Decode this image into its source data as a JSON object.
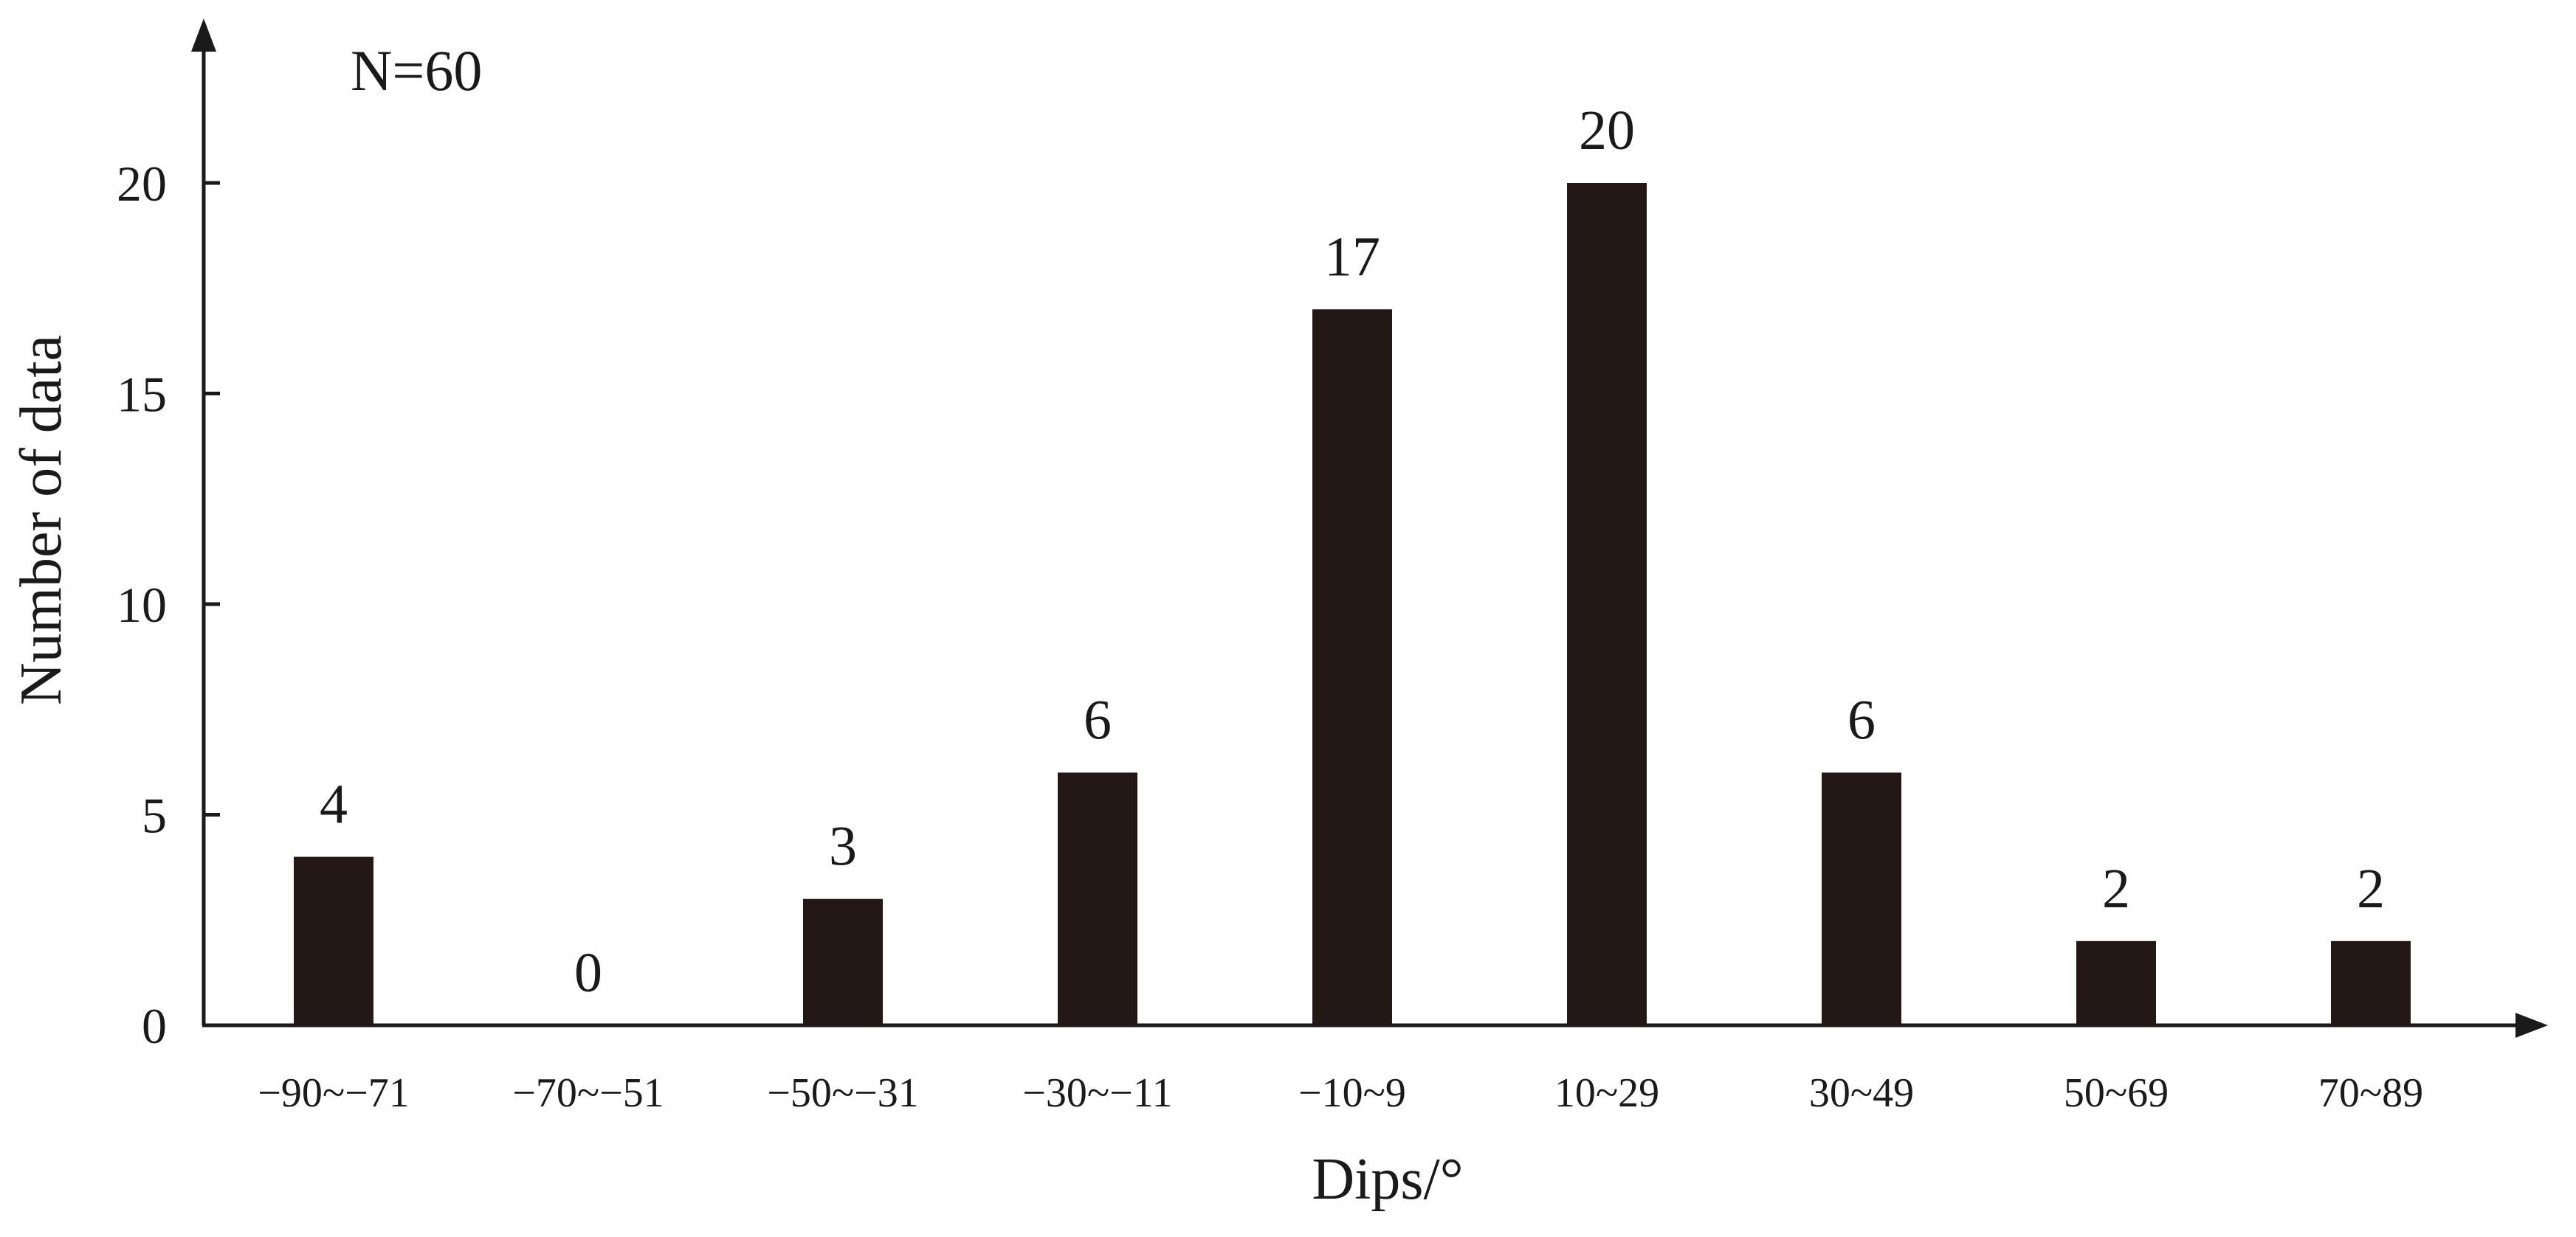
{
  "chart_data": {
    "type": "bar",
    "categories": [
      "−90~−71",
      "−70~−51",
      "−50~−31",
      "−30~−11",
      "−10~9",
      "10~29",
      "30~49",
      "50~69",
      "70~89"
    ],
    "values": [
      4,
      0,
      3,
      6,
      17,
      20,
      6,
      2,
      2
    ],
    "data_labels": [
      "4",
      "0",
      "3",
      "6",
      "17",
      "20",
      "6",
      "2",
      "2"
    ],
    "title": "",
    "annotation": "N=60",
    "xlabel": "Dips/°",
    "ylabel": "Number of data",
    "ylim": [
      0,
      20
    ],
    "yticks": [
      0,
      5,
      10,
      15,
      20
    ],
    "ytick_labels": [
      "0",
      "5",
      "10",
      "15",
      "20"
    ],
    "bar_color": "#231815",
    "grid": false,
    "legend": "none"
  }
}
